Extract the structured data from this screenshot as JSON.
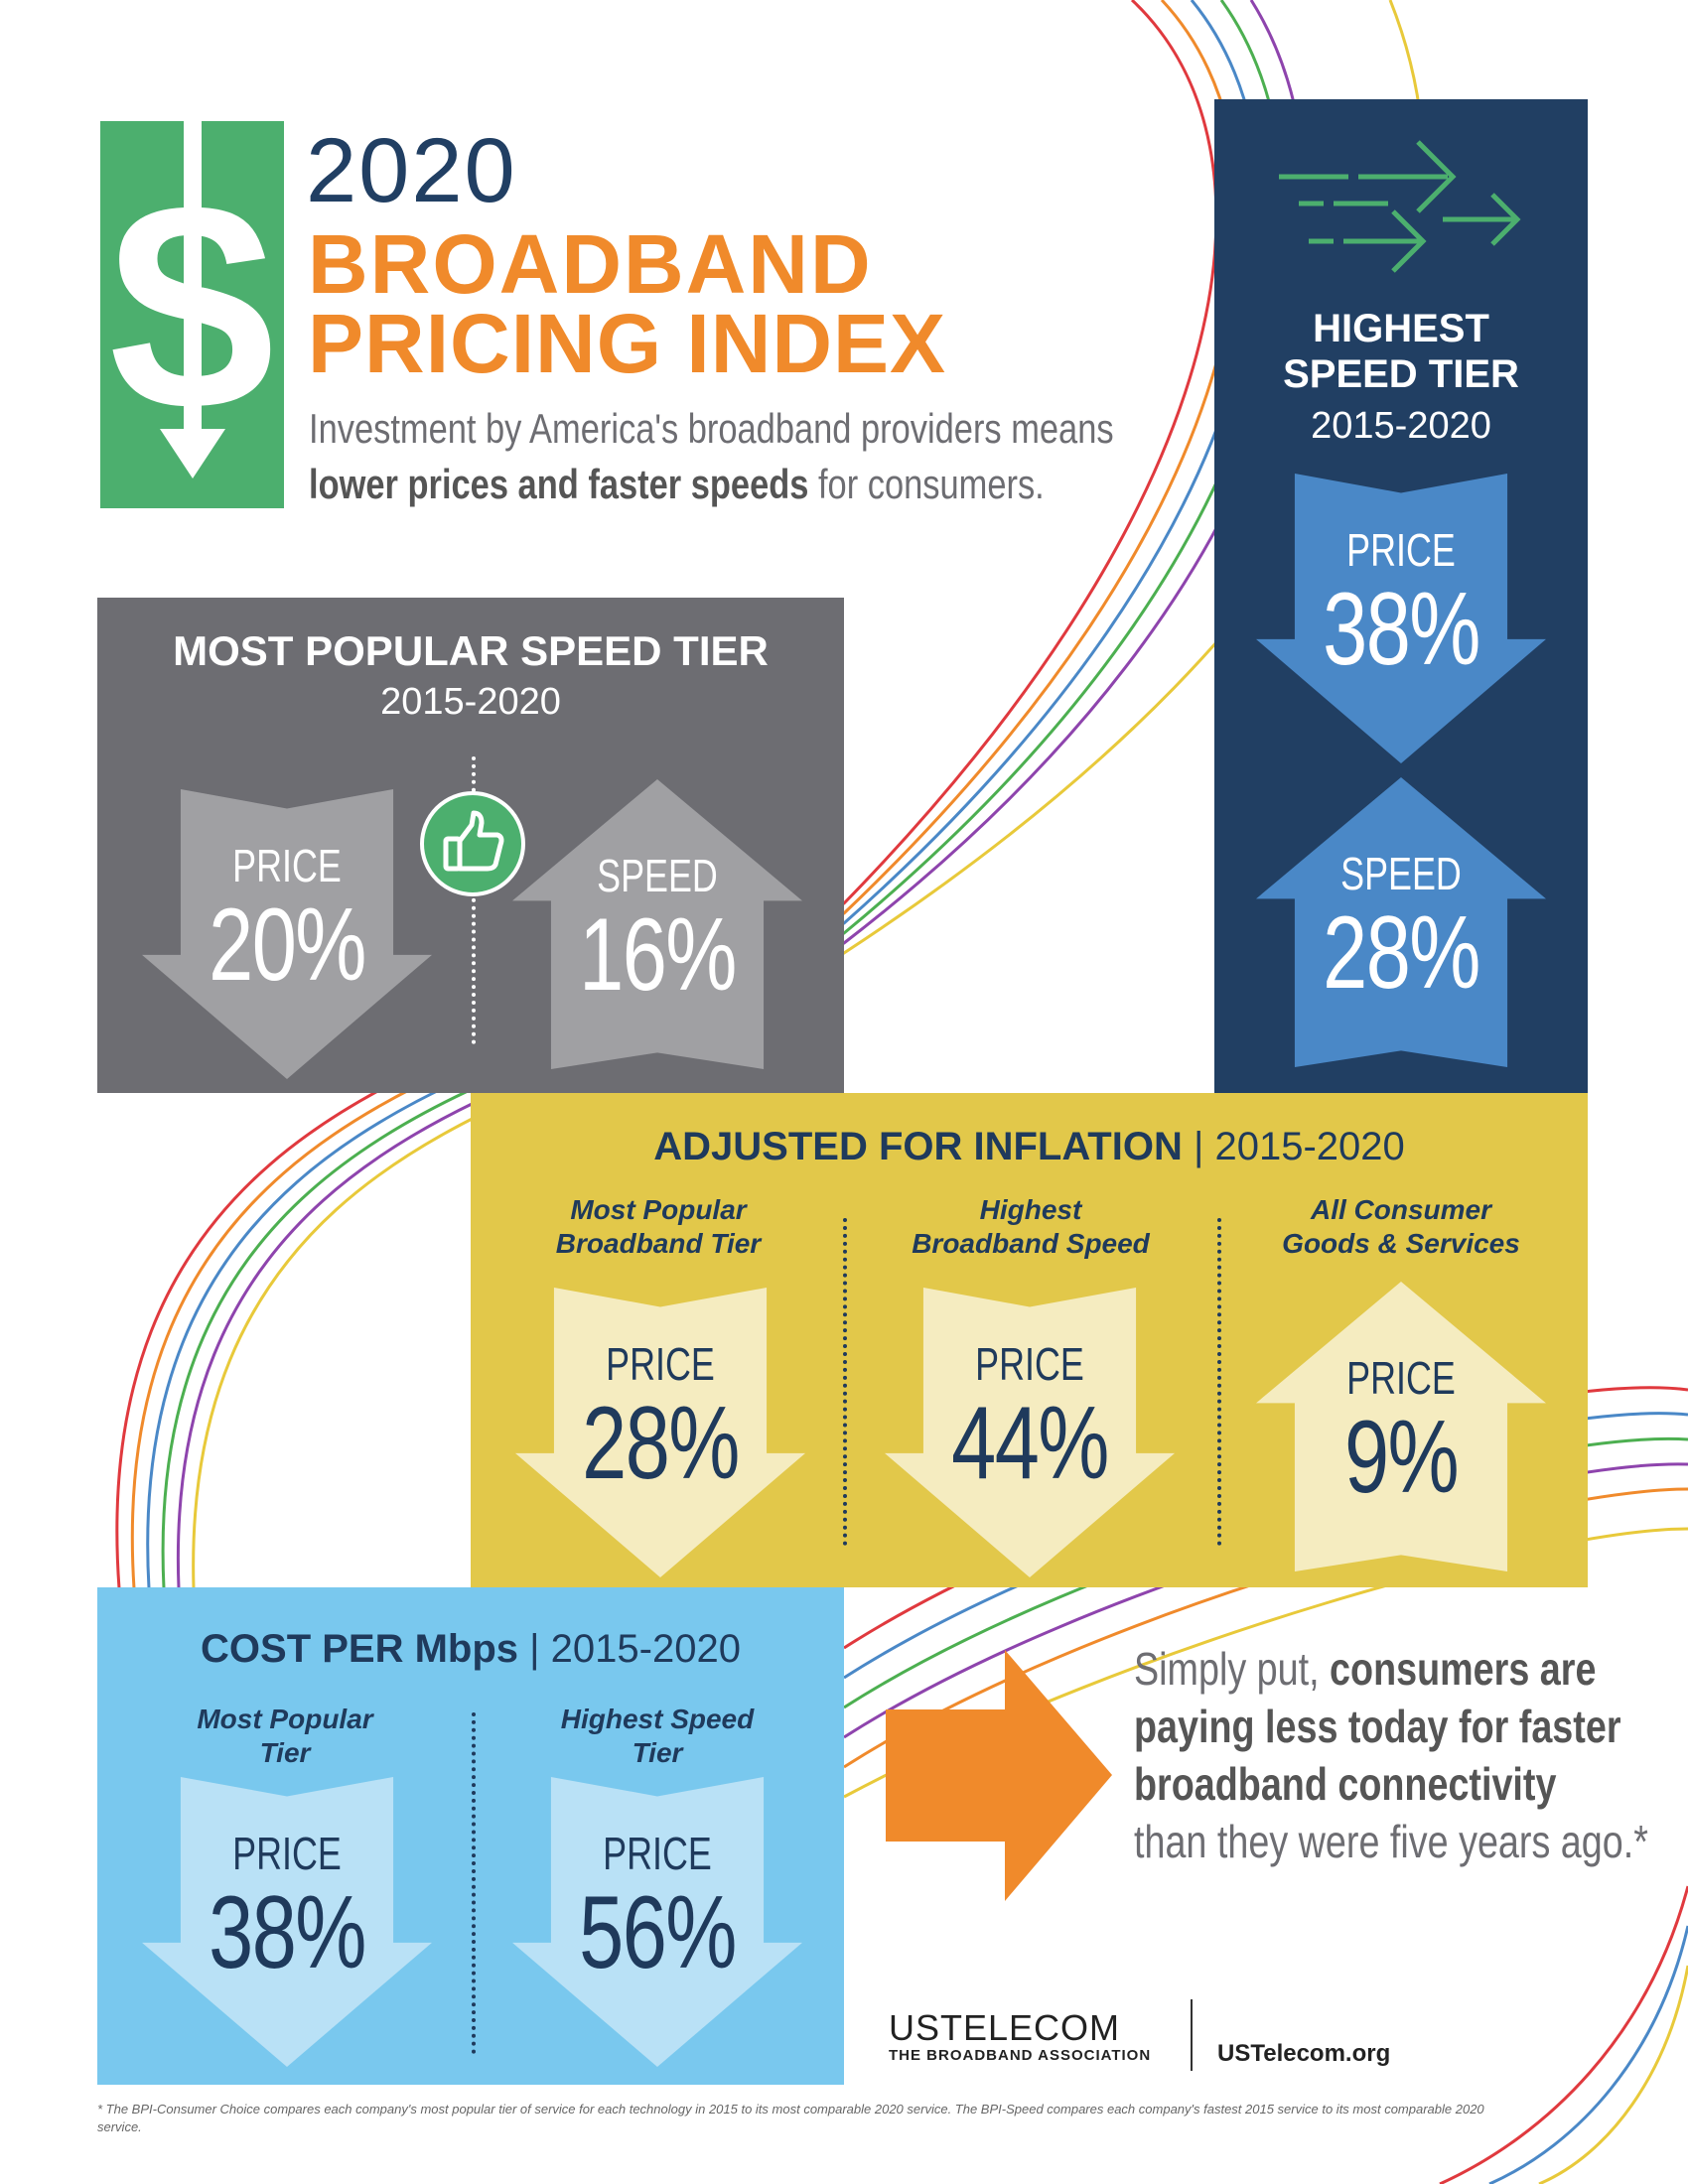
{
  "header": {
    "year": "2020",
    "title_line1": "BROADBAND",
    "title_line2": "PRICING INDEX",
    "subtitle_line1": "Investment by America's broadband providers means",
    "subtitle_bold": "lower prices and faster speeds",
    "subtitle_end": " for consumers.",
    "logo_icon": "dollar-down-arrow-icon"
  },
  "popular": {
    "title": "MOST POPULAR SPEED TIER",
    "years": "2015-2020",
    "price_label": "PRICE",
    "price_value": "20%",
    "price_direction": "down",
    "speed_label": "SPEED",
    "speed_value": "16%",
    "speed_direction": "up",
    "icon": "thumbs-up-icon"
  },
  "highest": {
    "title_line1": "HIGHEST",
    "title_line2": "SPEED TIER",
    "years": "2015-2020",
    "icon": "speed-arrows-icon",
    "price_label": "PRICE",
    "price_value": "38%",
    "price_direction": "down",
    "speed_label": "SPEED",
    "speed_value": "28%",
    "speed_direction": "up"
  },
  "inflation": {
    "title": "ADJUSTED FOR INFLATION",
    "years": "| 2015-2020",
    "columns": [
      {
        "line1": "Most Popular",
        "line2": "Broadband Tier",
        "label": "PRICE",
        "value": "28%",
        "direction": "down"
      },
      {
        "line1": "Highest",
        "line2": "Broadband Speed",
        "label": "PRICE",
        "value": "44%",
        "direction": "down"
      },
      {
        "line1": "All Consumer",
        "line2": "Goods & Services",
        "label": "PRICE",
        "value": "9%",
        "direction": "up"
      }
    ]
  },
  "cost": {
    "title": "COST PER Mbps",
    "years": "| 2015-2020",
    "columns": [
      {
        "line1": "Most Popular",
        "line2": "Tier",
        "label": "PRICE",
        "value": "38%",
        "direction": "down"
      },
      {
        "line1": "Highest Speed",
        "line2": "Tier",
        "label": "PRICE",
        "value": "56%",
        "direction": "down"
      }
    ]
  },
  "summary": {
    "lead": "Simply put, ",
    "bold1": "consumers are",
    "bold2": "paying less today for faster",
    "bold3": "broadband connectivity",
    "end": "than they were five years ago.*"
  },
  "brand": {
    "name": "USTELECOM",
    "tagline": "THE BROADBAND ASSOCIATION",
    "url": "USTelecom.org"
  },
  "footnote": "* The BPI-Consumer Choice compares each company's most popular tier of service for each technology in 2015 to its most comparable 2020 service. The BPI-Speed compares each company's fastest 2015 service to its most comparable 2020 service.",
  "colors": {
    "green": "#4caf6e",
    "orange": "#f08a2b",
    "navy": "#213f63",
    "gray": "#6d6d72",
    "yellow": "#e2c84a",
    "sky": "#79c8ee",
    "blue_arrow": "#4a88c7"
  }
}
